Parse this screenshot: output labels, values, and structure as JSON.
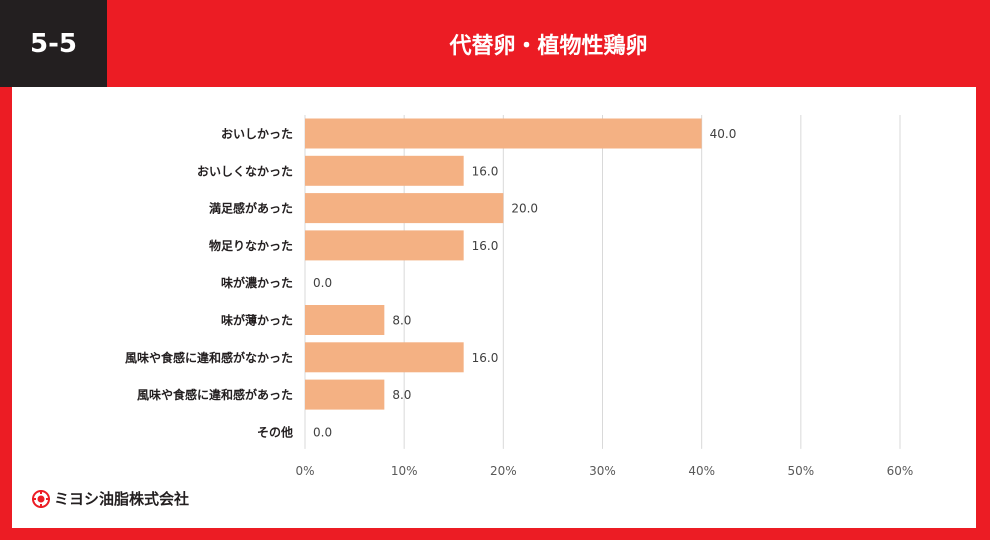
{
  "header": {
    "badge": "5-5",
    "title": "代替卵・植物性鶏卵"
  },
  "brand": {
    "name": "ミヨシ油脂株式会社",
    "color": "#ec1c24"
  },
  "chart_data": {
    "type": "bar",
    "orientation": "horizontal",
    "title": "代替卵・植物性鶏卵",
    "categories": [
      "おいしかった",
      "おいしくなかった",
      "満足感があった",
      "物足りなかった",
      "味が濃かった",
      "味が薄かった",
      "風味や食感に違和感がなかった",
      "風味や食感に違和感があった",
      "その他"
    ],
    "values": [
      40.0,
      16.0,
      20.0,
      16.0,
      0.0,
      8.0,
      16.0,
      8.0,
      0.0
    ],
    "value_labels": [
      "40.0",
      "16.0",
      "20.0",
      "16.0",
      "0.0",
      "8.0",
      "16.0",
      "8.0",
      "0.0"
    ],
    "xlim": [
      0,
      60
    ],
    "xticks": [
      0,
      10,
      20,
      30,
      40,
      50,
      60
    ],
    "xtick_labels": [
      "0%",
      "10%",
      "20%",
      "30%",
      "40%",
      "50%",
      "60%"
    ],
    "grid": true,
    "bar_color": "#f4b183",
    "xlabel": "",
    "ylabel": ""
  }
}
